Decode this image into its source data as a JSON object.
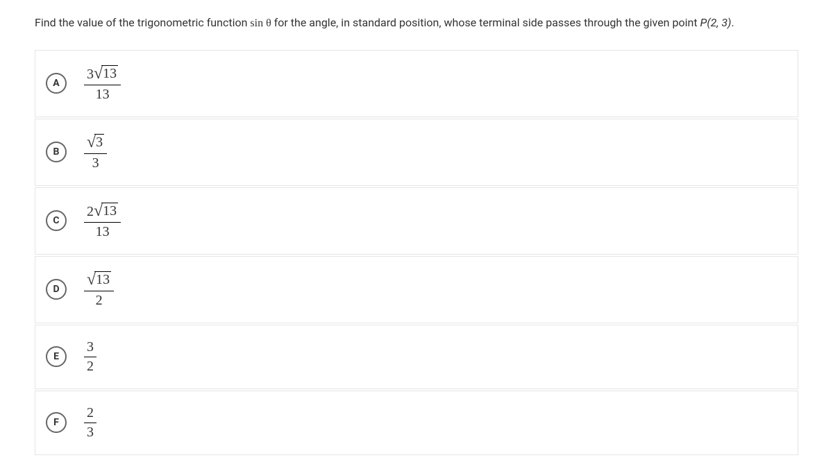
{
  "question": {
    "prefix": "Find the value of the trigonometric function ",
    "mathSymbol": "sin θ",
    "middle": " for the angle, in standard position, whose terminal side passes through the given point ",
    "pointLabel": "P(2, 3)",
    "suffix": "."
  },
  "options": [
    {
      "letter": "A",
      "numerator": {
        "coefficient": "3",
        "sqrtContent": "13"
      },
      "denominator": "13"
    },
    {
      "letter": "B",
      "numerator": {
        "coefficient": "",
        "sqrtContent": "3"
      },
      "denominator": "3"
    },
    {
      "letter": "C",
      "numerator": {
        "coefficient": "2",
        "sqrtContent": "13"
      },
      "denominator": "13"
    },
    {
      "letter": "D",
      "numerator": {
        "coefficient": "",
        "sqrtContent": "13"
      },
      "denominator": "2"
    },
    {
      "letter": "E",
      "numerator": {
        "plain": "3"
      },
      "denominator": "2"
    },
    {
      "letter": "F",
      "numerator": {
        "plain": "2"
      },
      "denominator": "3"
    }
  ],
  "styling": {
    "bodyBackground": "#ffffff",
    "textColor": "#333333",
    "borderColor": "#e5e5e5",
    "letterBorderColor": "#666666",
    "questionFontSize": 16,
    "formulaFontSize": 20,
    "letterCircleSize": 30
  }
}
